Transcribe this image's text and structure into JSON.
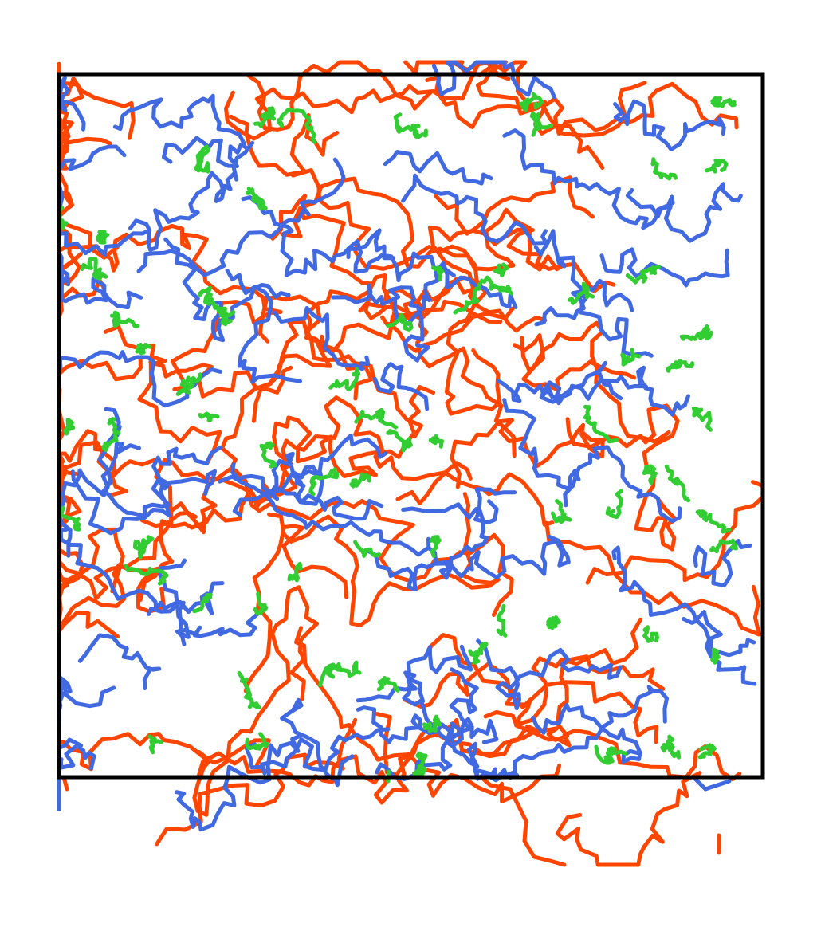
{
  "diagram": {
    "type": "random-walk-trajectories",
    "frame": {
      "visible": true,
      "color": "#000000"
    },
    "colors": {
      "orange": "#ff4500",
      "blue": "#4169e1",
      "green": "#32cd32"
    },
    "populations": [
      {
        "id": "orange",
        "color": "#ff4500",
        "diffusivity": "high",
        "approx_tracks": 55
      },
      {
        "id": "blue",
        "color": "#4169e1",
        "diffusivity": "medium",
        "approx_tracks": 60
      },
      {
        "id": "green",
        "color": "#32cd32",
        "diffusivity": "low",
        "approx_tracks": 70
      }
    ]
  }
}
